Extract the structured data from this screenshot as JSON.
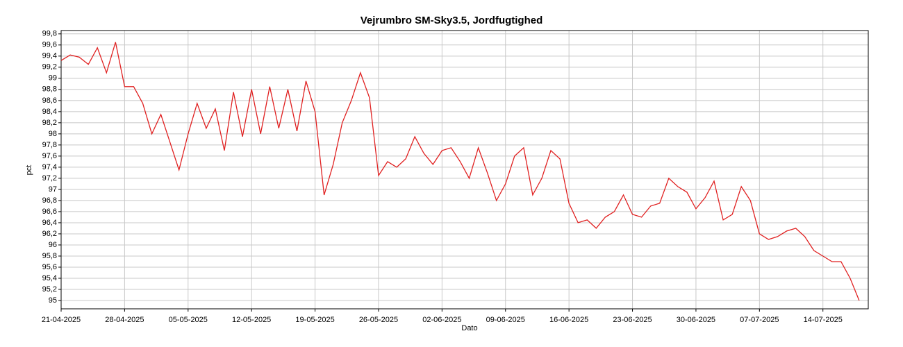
{
  "chart_data": {
    "type": "line",
    "title": "Vejrumbro SM-Sky3.5, Jordfugtighed",
    "xlabel": "Dato",
    "ylabel": "pct",
    "x": [
      "21-04-2025",
      "22-04-2025",
      "23-04-2025",
      "24-04-2025",
      "25-04-2025",
      "26-04-2025",
      "27-04-2025",
      "28-04-2025",
      "29-04-2025",
      "30-04-2025",
      "01-05-2025",
      "02-05-2025",
      "03-05-2025",
      "04-05-2025",
      "05-05-2025",
      "06-05-2025",
      "07-05-2025",
      "08-05-2025",
      "09-05-2025",
      "10-05-2025",
      "11-05-2025",
      "12-05-2025",
      "13-05-2025",
      "14-05-2025",
      "15-05-2025",
      "16-05-2025",
      "17-05-2025",
      "18-05-2025",
      "19-05-2025",
      "20-05-2025",
      "21-05-2025",
      "22-05-2025",
      "23-05-2025",
      "24-05-2025",
      "25-05-2025",
      "26-05-2025",
      "27-05-2025",
      "28-05-2025",
      "29-05-2025",
      "30-05-2025",
      "31-05-2025",
      "01-06-2025",
      "02-06-2025",
      "03-06-2025",
      "04-06-2025",
      "05-06-2025",
      "06-06-2025",
      "07-06-2025",
      "08-06-2025",
      "09-06-2025",
      "10-06-2025",
      "11-06-2025",
      "12-06-2025",
      "13-06-2025",
      "14-06-2025",
      "15-06-2025",
      "16-06-2025",
      "17-06-2025",
      "18-06-2025",
      "19-06-2025",
      "20-06-2025",
      "21-06-2025",
      "22-06-2025",
      "23-06-2025",
      "24-06-2025",
      "25-06-2025",
      "26-06-2025",
      "27-06-2025",
      "28-06-2025",
      "29-06-2025",
      "30-06-2025",
      "01-07-2025",
      "02-07-2025",
      "03-07-2025",
      "04-07-2025",
      "05-07-2025",
      "06-07-2025",
      "07-07-2025",
      "08-07-2025",
      "09-07-2025",
      "10-07-2025",
      "11-07-2025",
      "12-07-2025",
      "13-07-2025",
      "14-07-2025",
      "15-07-2025",
      "16-07-2025",
      "17-07-2025",
      "18-07-2025"
    ],
    "series": [
      {
        "name": "Jordfugtighed",
        "color": "#e02020",
        "values": [
          99.32,
          99.42,
          99.38,
          99.25,
          99.55,
          99.1,
          99.65,
          98.85,
          98.85,
          98.55,
          98.0,
          98.35,
          97.85,
          97.35,
          98.0,
          98.55,
          98.1,
          98.45,
          97.7,
          98.75,
          97.95,
          98.8,
          98.0,
          98.85,
          98.1,
          98.8,
          98.05,
          98.95,
          98.4,
          96.9,
          97.45,
          98.2,
          98.6,
          99.1,
          98.65,
          97.25,
          97.5,
          97.4,
          97.55,
          97.95,
          97.65,
          97.45,
          97.7,
          97.75,
          97.5,
          97.2,
          97.75,
          97.3,
          96.8,
          97.1,
          97.6,
          97.75,
          96.9,
          97.2,
          97.7,
          97.55,
          96.75,
          96.4,
          96.45,
          96.3,
          96.5,
          96.6,
          96.9,
          96.55,
          96.5,
          96.7,
          96.75,
          97.2,
          97.05,
          96.95,
          96.65,
          96.85,
          97.15,
          96.45,
          96.55,
          97.05,
          96.8,
          96.2,
          96.1,
          96.15,
          96.25,
          96.3,
          96.15,
          95.9,
          95.8,
          95.7,
          95.7,
          95.4,
          95.0
        ]
      }
    ],
    "xlim": [
      "21-04-2025",
      "19-07-2025"
    ],
    "xticks": [
      "21-04-2025",
      "28-04-2025",
      "05-05-2025",
      "12-05-2025",
      "19-05-2025",
      "26-05-2025",
      "02-06-2025",
      "09-06-2025",
      "16-06-2025",
      "23-06-2025",
      "30-06-2025",
      "07-07-2025",
      "14-07-2025"
    ],
    "ylim": [
      94.85,
      99.86
    ],
    "yticks": [
      95,
      {
        "value": 95.2,
        "label": "95,2"
      },
      {
        "value": 95.4,
        "label": "95,4"
      },
      {
        "value": 95.6,
        "label": "95,6"
      },
      {
        "value": 95.8,
        "label": "95,8"
      },
      96,
      {
        "value": 96.2,
        "label": "96,2"
      },
      {
        "value": 96.4,
        "label": "96,4"
      },
      {
        "value": 96.6,
        "label": "96,6"
      },
      {
        "value": 96.8,
        "label": "96,8"
      },
      97,
      {
        "value": 97.2,
        "label": "97,2"
      },
      {
        "value": 97.4,
        "label": "97,4"
      },
      {
        "value": 97.6,
        "label": "97,6"
      },
      {
        "value": 97.8,
        "label": "97,8"
      },
      98,
      {
        "value": 98.2,
        "label": "98,2"
      },
      {
        "value": 98.4,
        "label": "98,4"
      },
      {
        "value": 98.6,
        "label": "98,6"
      },
      {
        "value": 98.8,
        "label": "98,8"
      },
      99,
      {
        "value": 99.2,
        "label": "99,2"
      },
      {
        "value": 99.4,
        "label": "99,4"
      },
      {
        "value": 99.6,
        "label": "99,6"
      },
      {
        "value": 99.8,
        "label": "99,8"
      }
    ],
    "grid": true
  }
}
